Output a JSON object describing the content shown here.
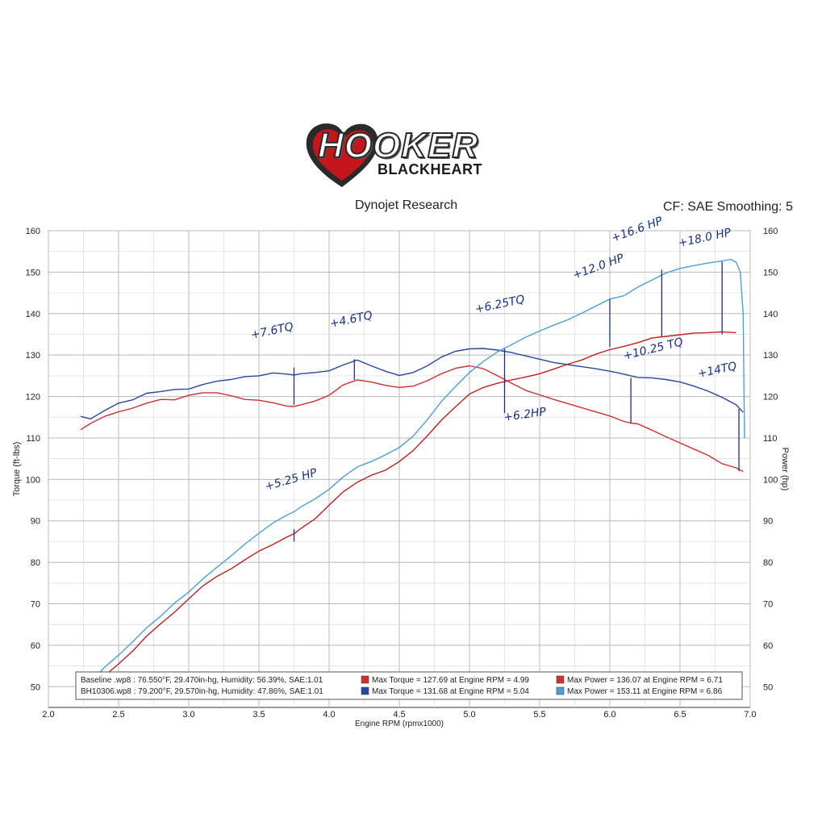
{
  "logo": {
    "word": "HOOKER",
    "sub": "BLACKHEART",
    "heart_color": "#c4161c"
  },
  "header": {
    "title": "Dynojet Research",
    "cf": "CF: SAE Smoothing: 5"
  },
  "colors": {
    "baseline_torque": "#d03030",
    "baseline_power": "#c02020",
    "bh_torque": "#2848a0",
    "bh_power": "#4a9fd8",
    "annotation": "#1a2f8a",
    "grid": "#b8b8b8"
  },
  "chart_data": {
    "type": "line",
    "xlabel": "Engine RPM (rpmx1000)",
    "ylabel": "Torque (ft-lbs)",
    "y2label": "Power (hp)",
    "xlim": [
      2.0,
      7.0
    ],
    "ylim": [
      45,
      160
    ],
    "y2lim": [
      45,
      160
    ],
    "x_ticks": [
      "2.0",
      "2.5",
      "3.0",
      "3.5",
      "4.0",
      "4.5",
      "5.0",
      "5.5",
      "6.0",
      "6.5",
      "7.0"
    ],
    "y_ticks": [
      "50",
      "60",
      "70",
      "80",
      "90",
      "100",
      "110",
      "120",
      "130",
      "140",
      "150",
      "160"
    ],
    "series": [
      {
        "key": "baseline_torque",
        "axis": "left",
        "x": [
          2.23,
          2.3,
          2.4,
          2.5,
          2.6,
          2.7,
          2.8,
          2.9,
          3.0,
          3.1,
          3.2,
          3.3,
          3.4,
          3.5,
          3.6,
          3.7,
          3.75,
          3.8,
          3.9,
          4.0,
          4.1,
          4.2,
          4.3,
          4.4,
          4.5,
          4.6,
          4.7,
          4.8,
          4.9,
          5.0,
          5.1,
          5.2,
          5.3,
          5.4,
          5.5,
          5.6,
          5.7,
          5.8,
          5.9,
          6.0,
          6.1,
          6.15,
          6.2,
          6.3,
          6.4,
          6.5,
          6.6,
          6.7,
          6.8,
          6.9,
          6.95
        ],
        "y": [
          112,
          113.5,
          115.2,
          116.3,
          117.2,
          118.4,
          119.3,
          119.2,
          120.3,
          120.9,
          120.9,
          120.2,
          119.3,
          119.1,
          118.5,
          117.7,
          117.6,
          118.0,
          118.9,
          120.3,
          122.8,
          124.0,
          123.5,
          122.7,
          122.2,
          122.5,
          123.8,
          125.5,
          126.8,
          127.4,
          126.7,
          125.0,
          123.2,
          121.5,
          120.4,
          119.3,
          118.3,
          117.3,
          116.3,
          115.3,
          114.0,
          113.6,
          113.4,
          111.9,
          110.3,
          108.8,
          107.3,
          105.8,
          103.8,
          102.8,
          101.9
        ]
      },
      {
        "key": "bh_torque",
        "axis": "left",
        "x": [
          2.23,
          2.3,
          2.4,
          2.5,
          2.6,
          2.7,
          2.8,
          2.9,
          3.0,
          3.1,
          3.2,
          3.3,
          3.4,
          3.5,
          3.6,
          3.7,
          3.75,
          3.8,
          3.9,
          4.0,
          4.1,
          4.2,
          4.3,
          4.4,
          4.5,
          4.6,
          4.7,
          4.8,
          4.9,
          5.0,
          5.1,
          5.2,
          5.3,
          5.4,
          5.5,
          5.6,
          5.7,
          5.8,
          5.9,
          6.0,
          6.1,
          6.15,
          6.2,
          6.3,
          6.4,
          6.5,
          6.6,
          6.7,
          6.8,
          6.9,
          6.95
        ],
        "y": [
          115.2,
          114.6,
          116.6,
          118.4,
          119.2,
          120.8,
          121.2,
          121.7,
          121.8,
          122.9,
          123.7,
          124.1,
          124.8,
          125.0,
          125.7,
          125.4,
          125.2,
          125.5,
          125.8,
          126.2,
          127.6,
          128.8,
          127.4,
          126.1,
          125.1,
          125.8,
          127.4,
          129.5,
          130.9,
          131.5,
          131.6,
          131.2,
          130.6,
          129.8,
          129.0,
          128.2,
          127.7,
          127.2,
          126.7,
          126.1,
          125.4,
          125.0,
          124.6,
          124.5,
          124.1,
          123.5,
          122.5,
          121.3,
          119.8,
          118.0,
          116.2
        ]
      },
      {
        "key": "baseline_power",
        "axis": "right",
        "x": [
          2.23,
          2.3,
          2.4,
          2.5,
          2.6,
          2.7,
          2.8,
          2.9,
          3.0,
          3.1,
          3.2,
          3.3,
          3.4,
          3.5,
          3.6,
          3.7,
          3.75,
          3.8,
          3.9,
          4.0,
          4.1,
          4.2,
          4.3,
          4.4,
          4.5,
          4.6,
          4.7,
          4.8,
          4.9,
          5.0,
          5.1,
          5.2,
          5.3,
          5.4,
          5.5,
          5.6,
          5.7,
          5.8,
          5.9,
          6.0,
          6.1,
          6.2,
          6.3,
          6.4,
          6.5,
          6.6,
          6.7,
          6.8,
          6.9
        ],
        "y": [
          47,
          49.5,
          52.6,
          55.5,
          58.6,
          62.2,
          65.2,
          68,
          71.2,
          74.3,
          76.6,
          78.4,
          80.6,
          82.7,
          84.3,
          86.1,
          86.9,
          88.2,
          90.5,
          93.8,
          97.0,
          99.3,
          101.0,
          102.2,
          104.3,
          107.0,
          110.5,
          114.3,
          117.5,
          120.6,
          122.2,
          123.2,
          124.0,
          124.7,
          125.5,
          126.6,
          127.8,
          128.8,
          130.2,
          131.3,
          132.1,
          133.0,
          134.1,
          134.5,
          134.9,
          135.3,
          135.4,
          135.6,
          135.4
        ]
      },
      {
        "key": "bh_power",
        "axis": "right",
        "x": [
          2.23,
          2.3,
          2.4,
          2.5,
          2.6,
          2.7,
          2.8,
          2.9,
          3.0,
          3.1,
          3.2,
          3.3,
          3.4,
          3.5,
          3.6,
          3.7,
          3.75,
          3.8,
          3.9,
          4.0,
          4.1,
          4.2,
          4.3,
          4.4,
          4.5,
          4.6,
          4.7,
          4.8,
          4.9,
          5.0,
          5.1,
          5.2,
          5.3,
          5.4,
          5.5,
          5.6,
          5.7,
          5.8,
          5.9,
          6.0,
          6.1,
          6.2,
          6.3,
          6.4,
          6.5,
          6.6,
          6.7,
          6.8,
          6.86,
          6.9,
          6.93,
          6.95,
          6.96
        ],
        "y": [
          48.8,
          51.0,
          54.7,
          57.6,
          60.8,
          64.2,
          67.0,
          70.2,
          72.8,
          76.0,
          78.8,
          81.5,
          84.4,
          87.0,
          89.5,
          91.4,
          92.2,
          93.4,
          95.3,
          97.6,
          100.6,
          103.0,
          104.3,
          105.9,
          107.7,
          110.5,
          114.4,
          118.8,
          122.4,
          125.8,
          128.5,
          130.8,
          132.5,
          134.3,
          135.8,
          137.2,
          138.5,
          140.1,
          141.8,
          143.5,
          144.3,
          146.4,
          148.1,
          149.8,
          150.9,
          151.6,
          152.2,
          152.7,
          153.1,
          152.4,
          150.0,
          140.0,
          110.0
        ]
      }
    ],
    "legend": [
      {
        "file": "Baseline .wp8 : 76.550°F, 29.470in-hg, Humidity: 56.39%, SAE:1.01",
        "torque": "Max Torque = 127.69 at Engine RPM = 4.99",
        "power": "Max Power = 136.07 at Engine RPM = 6.71",
        "torque_color": "#d03030",
        "power_color": "#d03030"
      },
      {
        "file": "BH10306.wp8 : 79.200°F, 29.570in-hg, Humidity: 47.86%, SAE:1.01",
        "torque": "Max Torque = 131.68 at Engine RPM = 5.04",
        "power": "Max Power = 153.11 at Engine RPM = 6.86",
        "torque_color": "#2848a0",
        "power_color": "#4a9fd8"
      }
    ],
    "annotations": [
      {
        "text": "+7.6TQ",
        "x": 3.75
      },
      {
        "text": "+4.6TQ",
        "x": 4.18
      },
      {
        "text": "+5.25 HP",
        "x": 3.75
      },
      {
        "text": "+6.25TQ",
        "x": 5.25
      },
      {
        "text": "+6.2HP",
        "x": 5.25
      },
      {
        "text": "+12.0 HP",
        "x": 6.0
      },
      {
        "text": "+16.6 HP",
        "x": 6.37
      },
      {
        "text": "+18.0 HP",
        "x": 6.8
      },
      {
        "text": "+10.25 TQ",
        "x": 6.15
      },
      {
        "text": "+14TQ",
        "x": 6.92
      }
    ]
  }
}
